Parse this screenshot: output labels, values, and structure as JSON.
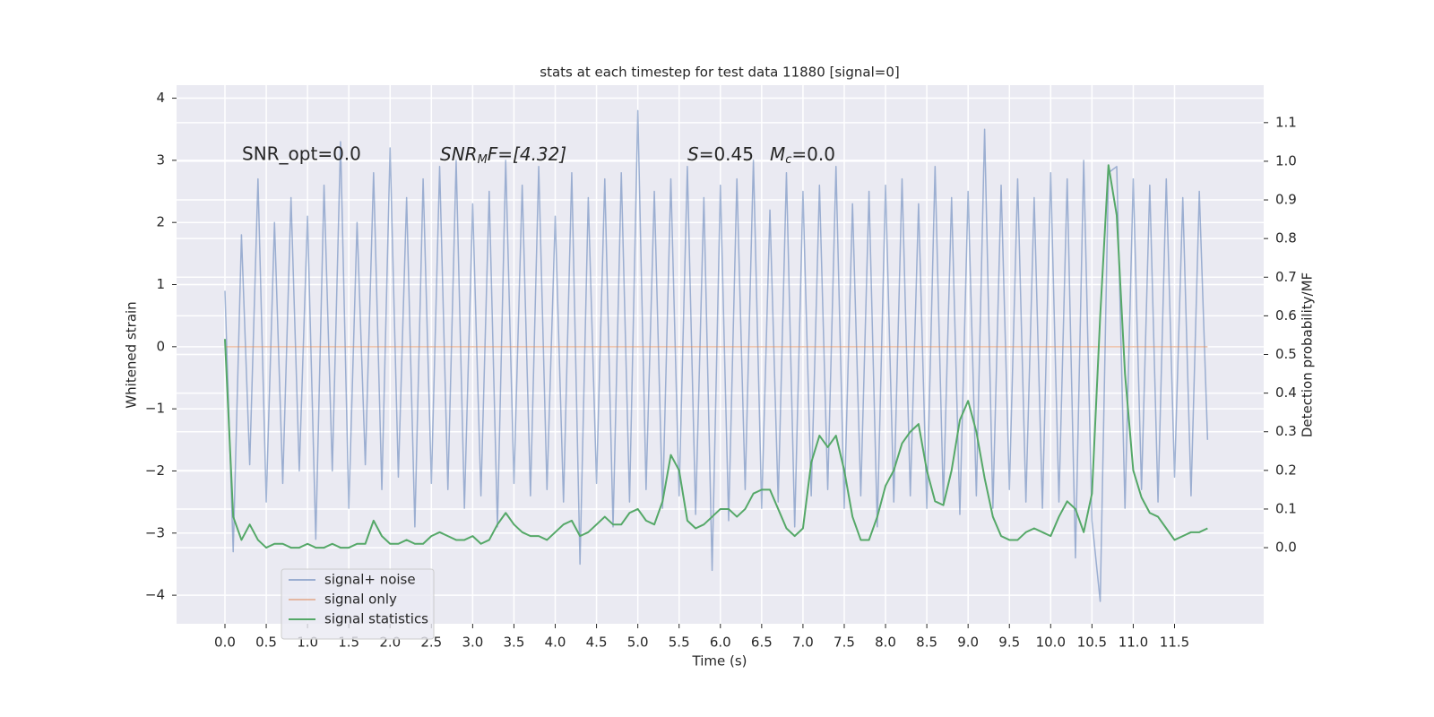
{
  "chart_data": {
    "type": "line",
    "title": "stats at each timestep for test data 11880 [signal=0]",
    "xlabel": "Time (s)",
    "ylabel": "Whitened strain",
    "y2label": "Detection probability/MF",
    "annotations": [
      "SNR_opt=0.0",
      "SNR",
      "M",
      "F=[4.32]",
      "S",
      "=0.45",
      "M",
      "c",
      "=0.0"
    ],
    "x": [
      0,
      0.1,
      0.2,
      0.3,
      0.4,
      0.5,
      0.6,
      0.7,
      0.8,
      0.9,
      1,
      1.1,
      1.2,
      1.3,
      1.4,
      1.5,
      1.6,
      1.7,
      1.8,
      1.9,
      2,
      2.1,
      2.2,
      2.3,
      2.4,
      2.5,
      2.6,
      2.7,
      2.8,
      2.9,
      3,
      3.1,
      3.2,
      3.3,
      3.4,
      3.5,
      3.6,
      3.7,
      3.8,
      3.9,
      4,
      4.1,
      4.2,
      4.3,
      4.4,
      4.5,
      4.6,
      4.7,
      4.8,
      4.9,
      5,
      5.1,
      5.2,
      5.3,
      5.4,
      5.5,
      5.6,
      5.7,
      5.8,
      5.9,
      6,
      6.1,
      6.2,
      6.3,
      6.4,
      6.5,
      6.6,
      6.7,
      6.8,
      6.9,
      7,
      7.1,
      7.2,
      7.3,
      7.4,
      7.5,
      7.6,
      7.7,
      7.8,
      7.9,
      8,
      8.1,
      8.2,
      8.3,
      8.4,
      8.5,
      8.6,
      8.7,
      8.8,
      8.9,
      9,
      9.1,
      9.2,
      9.3,
      9.4,
      9.5,
      9.6,
      9.7,
      9.8,
      9.9,
      10,
      10.1,
      10.2,
      10.3,
      10.4,
      10.5,
      10.6,
      10.7,
      10.8,
      10.9,
      11,
      11.1,
      11.2,
      11.3,
      11.4,
      11.5,
      11.6,
      11.7,
      11.8,
      11.9
    ],
    "series": [
      {
        "name": "signal+ noise",
        "color": "#4c72b0",
        "opacity": 0.5,
        "values": [
          0.9,
          -3.3,
          1.8,
          -1.9,
          2.7,
          -2.5,
          2.0,
          -2.2,
          2.4,
          -2.0,
          2.1,
          -3.1,
          2.6,
          -2.0,
          3.3,
          -2.6,
          2.0,
          -1.9,
          2.8,
          -2.3,
          3.2,
          -2.1,
          2.4,
          -2.9,
          2.7,
          -2.2,
          2.9,
          -2.3,
          3.0,
          -2.6,
          2.3,
          -2.4,
          2.5,
          -2.9,
          3.0,
          -2.2,
          2.6,
          -2.4,
          2.9,
          -2.3,
          2.1,
          -2.5,
          2.8,
          -3.5,
          2.4,
          -2.2,
          2.7,
          -2.9,
          2.8,
          -2.5,
          3.8,
          -2.3,
          2.5,
          -2.6,
          2.7,
          -2.4,
          2.9,
          -2.7,
          2.4,
          -3.6,
          2.6,
          -2.8,
          2.7,
          -2.3,
          3.0,
          -2.6,
          2.2,
          -2.5,
          2.8,
          -2.9,
          2.5,
          -2.4,
          2.6,
          -2.3,
          2.9,
          -2.6,
          2.3,
          -2.4,
          2.5,
          -2.9,
          2.6,
          -2.5,
          2.7,
          -2.4,
          2.3,
          -2.6,
          2.9,
          -2.5,
          2.4,
          -2.7,
          2.5,
          -2.4,
          3.5,
          -2.6,
          2.6,
          -2.3,
          2.7,
          -2.5,
          2.4,
          -2.6,
          2.8,
          -2.5,
          2.7,
          -3.4,
          3.0,
          -2.8,
          -4.1,
          2.8,
          2.9,
          -2.6,
          2.7,
          -2.3,
          2.6,
          -2.5,
          2.7,
          -2.1,
          2.4,
          -2.4,
          2.5,
          -1.5
        ]
      },
      {
        "name": "signal only",
        "color": "#dd8452",
        "opacity": 0.5,
        "values": [
          0,
          0,
          0,
          0,
          0,
          0,
          0,
          0,
          0,
          0,
          0,
          0,
          0,
          0,
          0,
          0,
          0,
          0,
          0,
          0,
          0,
          0,
          0,
          0,
          0,
          0,
          0,
          0,
          0,
          0,
          0,
          0,
          0,
          0,
          0,
          0,
          0,
          0,
          0,
          0,
          0,
          0,
          0,
          0,
          0,
          0,
          0,
          0,
          0,
          0,
          0,
          0,
          0,
          0,
          0,
          0,
          0,
          0,
          0,
          0,
          0,
          0,
          0,
          0,
          0,
          0,
          0,
          0,
          0,
          0,
          0,
          0,
          0,
          0,
          0,
          0,
          0,
          0,
          0,
          0,
          0,
          0,
          0,
          0,
          0,
          0,
          0,
          0,
          0,
          0,
          0,
          0,
          0,
          0,
          0,
          0,
          0,
          0,
          0,
          0,
          0,
          0,
          0,
          0,
          0,
          0,
          0,
          0,
          0,
          0,
          0,
          0,
          0,
          0,
          0,
          0,
          0,
          0,
          0,
          0
        ]
      },
      {
        "name": "signal statistics",
        "color": "#55a868",
        "axis": "y2",
        "values": [
          0.54,
          0.08,
          0.02,
          0.06,
          0.02,
          0.0,
          0.01,
          0.01,
          0.0,
          0.0,
          0.01,
          0.0,
          0.0,
          0.01,
          0.0,
          0.0,
          0.01,
          0.01,
          0.07,
          0.03,
          0.01,
          0.01,
          0.02,
          0.01,
          0.01,
          0.03,
          0.04,
          0.03,
          0.02,
          0.02,
          0.03,
          0.01,
          0.02,
          0.06,
          0.09,
          0.06,
          0.04,
          0.03,
          0.03,
          0.02,
          0.04,
          0.06,
          0.07,
          0.03,
          0.04,
          0.06,
          0.08,
          0.06,
          0.06,
          0.09,
          0.1,
          0.07,
          0.06,
          0.12,
          0.24,
          0.2,
          0.07,
          0.05,
          0.06,
          0.08,
          0.1,
          0.1,
          0.08,
          0.1,
          0.14,
          0.15,
          0.15,
          0.1,
          0.05,
          0.03,
          0.05,
          0.22,
          0.29,
          0.26,
          0.29,
          0.2,
          0.08,
          0.02,
          0.02,
          0.08,
          0.16,
          0.2,
          0.27,
          0.3,
          0.32,
          0.2,
          0.12,
          0.11,
          0.2,
          0.33,
          0.38,
          0.3,
          0.18,
          0.08,
          0.03,
          0.02,
          0.02,
          0.04,
          0.05,
          0.04,
          0.03,
          0.08,
          0.12,
          0.1,
          0.04,
          0.14,
          0.6,
          0.99,
          0.86,
          0.45,
          0.2,
          0.13,
          0.09,
          0.08,
          0.05,
          0.02,
          0.03,
          0.04,
          0.04,
          0.05
        ]
      }
    ],
    "xlim": [
      -0.586,
      12.58
    ],
    "ylim": [
      -4.46,
      4.21
    ],
    "y2lim": [
      -0.197,
      1.197
    ],
    "xticks": [
      {
        "value": 0,
        "label": "0.0"
      },
      0.5,
      {
        "value": 1,
        "label": "1.0"
      },
      1.5,
      {
        "value": 2,
        "label": "2.0"
      },
      2.5,
      {
        "value": 3,
        "label": "3.0"
      },
      3.5,
      {
        "value": 4,
        "label": "4.0"
      },
      4.5,
      {
        "value": 5,
        "label": "5.0"
      },
      5.5,
      {
        "value": 6,
        "label": "6.0"
      },
      6.5,
      {
        "value": 7,
        "label": "7.0"
      },
      7.5,
      {
        "value": 8,
        "label": "8.0"
      },
      8.5,
      {
        "value": 9,
        "label": "9.0"
      },
      9.5,
      {
        "value": 10,
        "label": "10.0"
      },
      10.5,
      {
        "value": 11,
        "label": "11.0"
      },
      11.5
    ],
    "yticks": [
      {
        "value": -4,
        "label": "−4"
      },
      {
        "value": -3,
        "label": "−3"
      },
      {
        "value": -2,
        "label": "−2"
      },
      {
        "value": -1,
        "label": "−1"
      },
      0,
      1,
      2,
      3,
      4
    ],
    "y2ticks": [
      {
        "value": 0,
        "label": "0.0"
      },
      0.1,
      0.2,
      0.3,
      0.4,
      0.5,
      0.6,
      0.7,
      0.8,
      0.9,
      {
        "value": 1,
        "label": "1.0"
      },
      1.1
    ],
    "grid": true,
    "legend": "lower left"
  }
}
